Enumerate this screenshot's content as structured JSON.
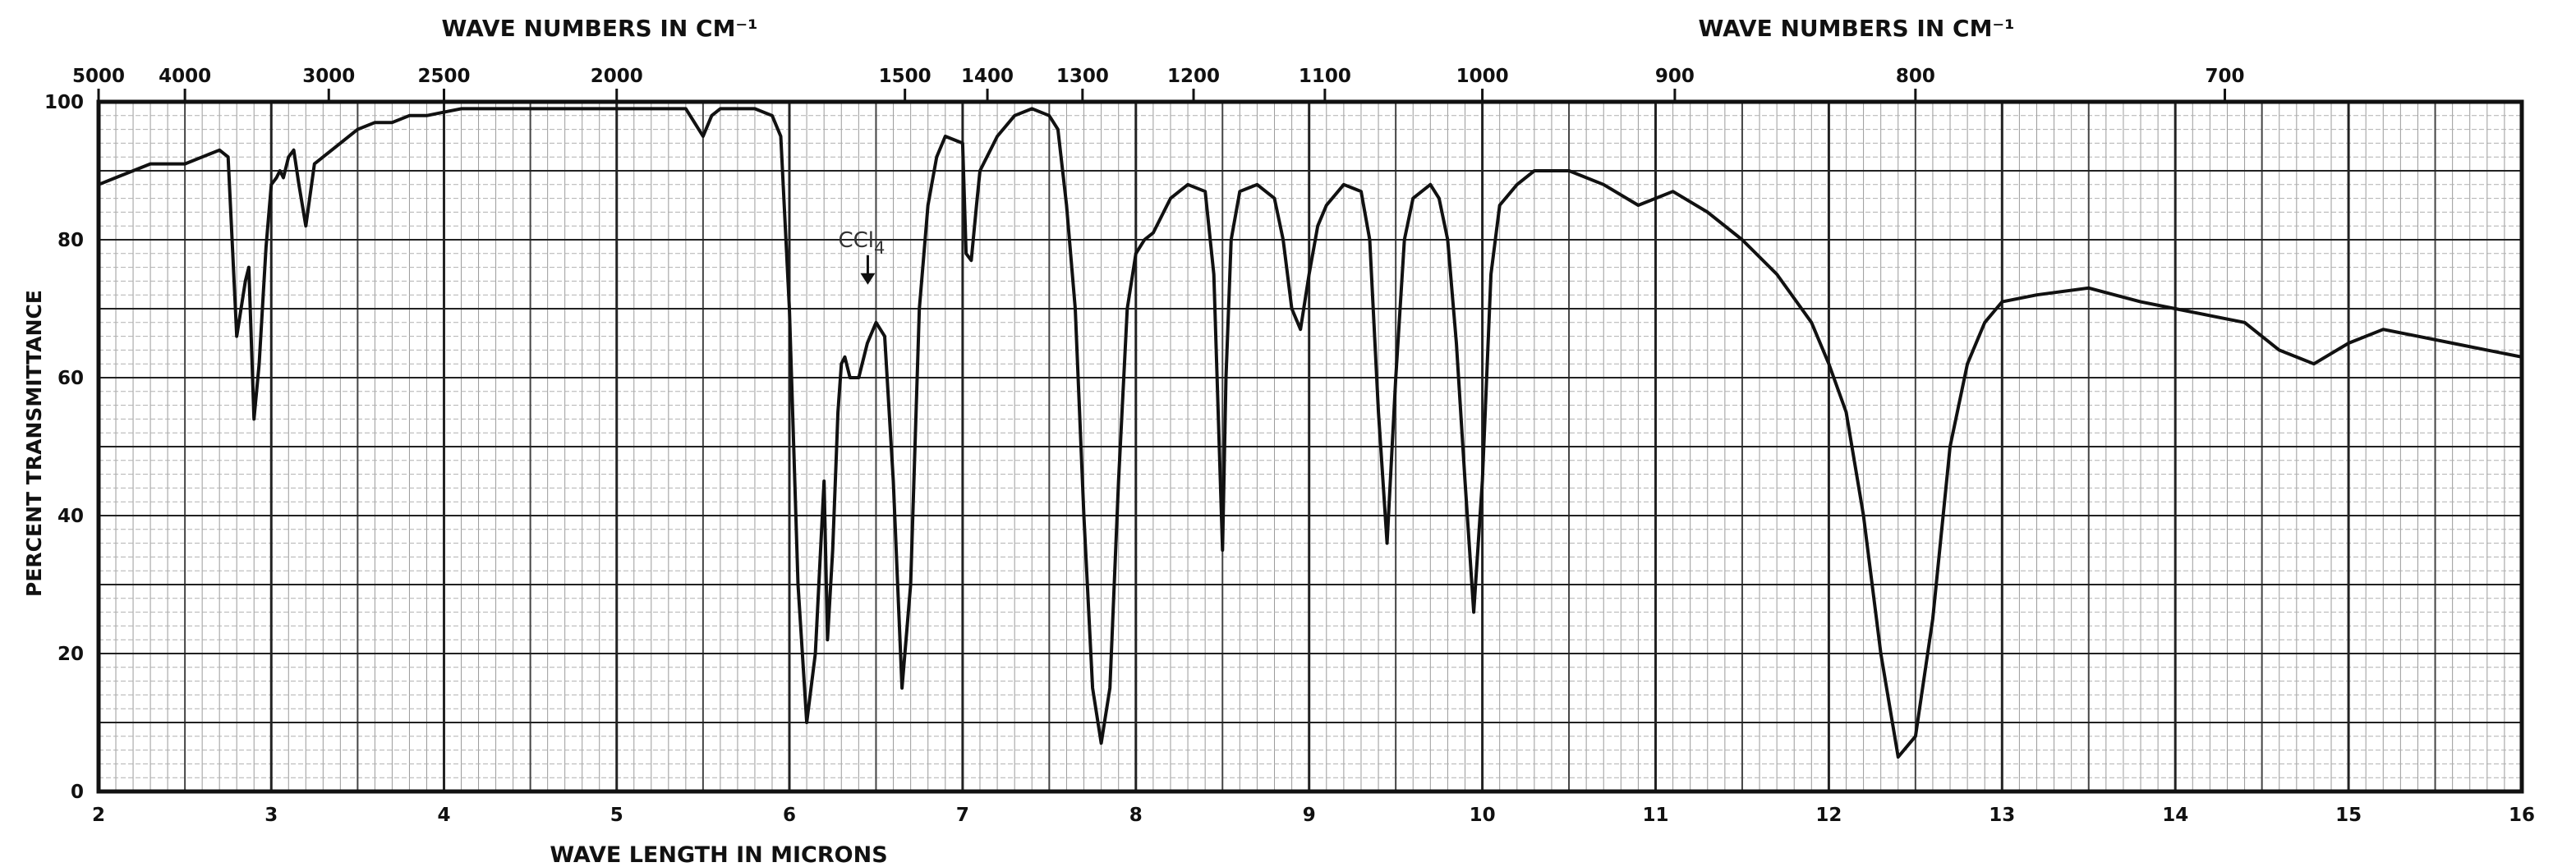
{
  "chart_data": {
    "type": "line",
    "title": "",
    "top_axis_label_left": "WAVE NUMBERS IN CM⁻¹",
    "top_axis_label_right": "WAVE NUMBERS IN CM⁻¹",
    "xlabel": "WAVE LENGTH IN MICRONS",
    "ylabel": "PERCENT TRANSMITTANCE",
    "xlim": [
      2,
      16
    ],
    "ylim": [
      0,
      100
    ],
    "x_ticks": [
      2,
      3,
      4,
      5,
      6,
      7,
      8,
      9,
      10,
      11,
      12,
      13,
      14,
      15,
      16
    ],
    "x_tick_labels": [
      "2",
      "3",
      "4",
      "5",
      "6",
      "7",
      "8",
      "9",
      "10",
      "11",
      "12",
      "13",
      "14",
      "15",
      "16"
    ],
    "y_ticks": [
      0,
      20,
      40,
      60,
      80,
      100
    ],
    "y_tick_labels": [
      "0",
      "20",
      "40",
      "60",
      "80",
      "100"
    ],
    "top_ticks": [
      {
        "label": "5000",
        "micron": 2.0
      },
      {
        "label": "4000",
        "micron": 2.5
      },
      {
        "label": "3000",
        "micron": 3.333
      },
      {
        "label": "2500",
        "micron": 4.0
      },
      {
        "label": "2000",
        "micron": 5.0
      },
      {
        "label": "1500",
        "micron": 6.667
      },
      {
        "label": "1400",
        "micron": 7.143
      },
      {
        "label": "1300",
        "micron": 7.692
      },
      {
        "label": "1200",
        "micron": 8.333
      },
      {
        "label": "1100",
        "micron": 9.091
      },
      {
        "label": "1000",
        "micron": 10.0
      },
      {
        "label": "900",
        "micron": 11.111
      },
      {
        "label": "800",
        "micron": 12.5
      },
      {
        "label": "700",
        "micron": 14.286
      }
    ],
    "annotation": {
      "text": "CCl",
      "subscript": "4",
      "x": 6.5,
      "y": 73
    },
    "grid": true,
    "series": [
      {
        "x": [
          2.0,
          2.1,
          2.3,
          2.5,
          2.6,
          2.7,
          2.75,
          2.8,
          2.85,
          2.87,
          2.9,
          2.93,
          2.97,
          3.0,
          3.03,
          3.05,
          3.07,
          3.1,
          3.13,
          3.16,
          3.2,
          3.25,
          3.3,
          3.35,
          3.4,
          3.5,
          3.6,
          3.7,
          3.8,
          3.9,
          4.0,
          4.1,
          4.3,
          4.5,
          4.8,
          5.0,
          5.2,
          5.4,
          5.45,
          5.5,
          5.55,
          5.6,
          5.7,
          5.8,
          5.9,
          5.95,
          6.0,
          6.05,
          6.1,
          6.15,
          6.2,
          6.22,
          6.25,
          6.27,
          6.28,
          6.3,
          6.32,
          6.35,
          6.4,
          6.45,
          6.5,
          6.55,
          6.6,
          6.65,
          6.7,
          6.75,
          6.8,
          6.85,
          6.9,
          7.0,
          7.02,
          7.05,
          7.08,
          7.1,
          7.2,
          7.3,
          7.4,
          7.5,
          7.55,
          7.6,
          7.65,
          7.7,
          7.75,
          7.8,
          7.85,
          7.9,
          7.95,
          8.0,
          8.05,
          8.1,
          8.2,
          8.3,
          8.4,
          8.45,
          8.5,
          8.52,
          8.55,
          8.6,
          8.7,
          8.8,
          8.85,
          8.9,
          8.95,
          9.0,
          9.05,
          9.1,
          9.2,
          9.3,
          9.35,
          9.4,
          9.45,
          9.5,
          9.55,
          9.6,
          9.7,
          9.75,
          9.8,
          9.85,
          9.9,
          9.95,
          10.0,
          10.05,
          10.1,
          10.2,
          10.3,
          10.5,
          10.7,
          10.9,
          11.0,
          11.1,
          11.3,
          11.5,
          11.7,
          11.9,
          12.0,
          12.1,
          12.2,
          12.3,
          12.4,
          12.5,
          12.6,
          12.7,
          12.8,
          12.9,
          13.0,
          13.2,
          13.5,
          13.8,
          14.0,
          14.2,
          14.4,
          14.6,
          14.8,
          15.0,
          15.2,
          15.4,
          15.6,
          15.8,
          16.0
        ],
        "y": [
          88,
          89,
          91,
          91,
          92,
          93,
          92,
          66,
          74,
          76,
          54,
          62,
          79,
          88,
          89,
          90,
          89,
          92,
          93,
          88,
          82,
          91,
          92,
          93,
          94,
          96,
          97,
          97,
          98,
          98,
          98.5,
          99,
          99,
          99,
          99,
          99,
          99,
          99,
          97,
          95,
          98,
          99,
          99,
          99,
          98,
          95,
          70,
          30,
          10,
          20,
          45,
          22,
          35,
          48,
          55,
          62,
          63,
          60,
          60,
          65,
          68,
          66,
          45,
          15,
          30,
          70,
          85,
          92,
          95,
          94,
          78,
          77,
          85,
          90,
          95,
          98,
          99,
          98,
          96,
          85,
          70,
          40,
          15,
          7,
          15,
          45,
          70,
          78,
          80,
          81,
          86,
          88,
          87,
          75,
          35,
          60,
          80,
          87,
          88,
          86,
          80,
          70,
          67,
          75,
          82,
          85,
          88,
          87,
          80,
          55,
          36,
          60,
          80,
          86,
          88,
          86,
          80,
          65,
          45,
          26,
          45,
          75,
          85,
          88,
          90,
          90,
          88,
          85,
          86,
          87,
          84,
          80,
          75,
          68,
          62,
          55,
          40,
          20,
          5,
          8,
          25,
          50,
          62,
          68,
          71,
          72,
          73,
          71,
          70,
          69,
          68,
          64,
          62,
          65,
          67,
          66,
          65,
          64,
          63
        ]
      }
    ]
  }
}
